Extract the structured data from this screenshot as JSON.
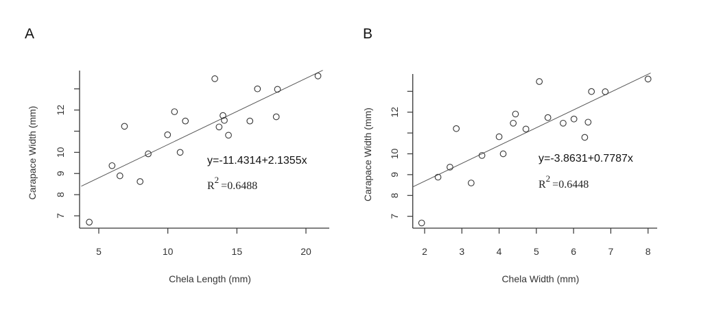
{
  "chart_data": [
    {
      "type": "scatter",
      "panel_label": "A",
      "xlabel": "Chela Length (mm)",
      "ylabel": "Carapace Width (mm)",
      "xlim": [
        3.6,
        21.5
      ],
      "ylim": [
        6.42,
        13.86
      ],
      "x_ticks": [
        5,
        10,
        15,
        20
      ],
      "x_tick_labels": [
        "5",
        "10",
        "15",
        "20"
      ],
      "y_ticks": [
        7,
        8,
        9,
        10,
        11,
        12,
        13
      ],
      "y_tick_labels": [
        "7",
        "8",
        "9",
        "10",
        "",
        "12",
        ""
      ],
      "grid": false,
      "equation": "y=-11.4314+2.1355x",
      "r2_label": "R",
      "r2_sup": "2",
      "r2_value": "=0.6488",
      "trend_line": {
        "x": [
          3.73,
          21.22
        ],
        "y": [
          8.4,
          13.88
        ]
      },
      "points": {
        "x": [
          4.31,
          5.96,
          6.53,
          6.86,
          7.99,
          8.58,
          9.98,
          10.48,
          10.89,
          11.27,
          13.4,
          13.71,
          13.99,
          14.09,
          14.39,
          15.94,
          16.49,
          17.85,
          17.94,
          20.87
        ],
        "y": [
          6.7,
          9.37,
          8.89,
          11.23,
          8.62,
          9.93,
          10.83,
          11.92,
          10.0,
          11.48,
          13.48,
          11.2,
          11.74,
          11.51,
          10.81,
          11.48,
          13.0,
          11.68,
          12.98,
          13.61
        ]
      }
    },
    {
      "type": "scatter",
      "panel_label": "B",
      "xlabel": "Chela Width (mm)",
      "ylabel": "Carapace Width (mm)",
      "xlim": [
        1.68,
        8.3
      ],
      "ylim": [
        6.42,
        13.7
      ],
      "x_ticks": [
        2,
        3,
        4,
        5,
        6,
        7,
        8
      ],
      "x_tick_labels": [
        "2",
        "3",
        "4",
        "5",
        "6",
        "7",
        "8"
      ],
      "y_ticks": [
        7,
        8,
        9,
        10,
        11,
        12,
        13
      ],
      "y_tick_labels": [
        "7",
        "8",
        "9",
        "10",
        "",
        "12",
        ""
      ],
      "grid": false,
      "equation": "y=-3.8631+0.7787x",
      "r2_label": "R",
      "r2_sup": "2",
      "r2_value": "=0.6448",
      "trend_line": {
        "x": [
          1.68,
          8.07
        ],
        "y": [
          8.41,
          13.88
        ]
      },
      "points": {
        "x": [
          1.92,
          2.36,
          2.68,
          2.85,
          3.25,
          3.54,
          4.0,
          4.11,
          4.38,
          4.44,
          4.72,
          5.08,
          5.31,
          5.72,
          6.01,
          6.3,
          6.39,
          6.48,
          6.85,
          8.0
        ],
        "y": [
          6.68,
          8.88,
          9.36,
          11.21,
          8.6,
          9.92,
          10.82,
          10.0,
          11.47,
          11.91,
          11.19,
          13.47,
          11.74,
          11.47,
          11.67,
          10.79,
          11.52,
          12.99,
          12.98,
          13.59
        ]
      }
    }
  ],
  "colors": {
    "ink": "#333333",
    "line": "#555555"
  }
}
